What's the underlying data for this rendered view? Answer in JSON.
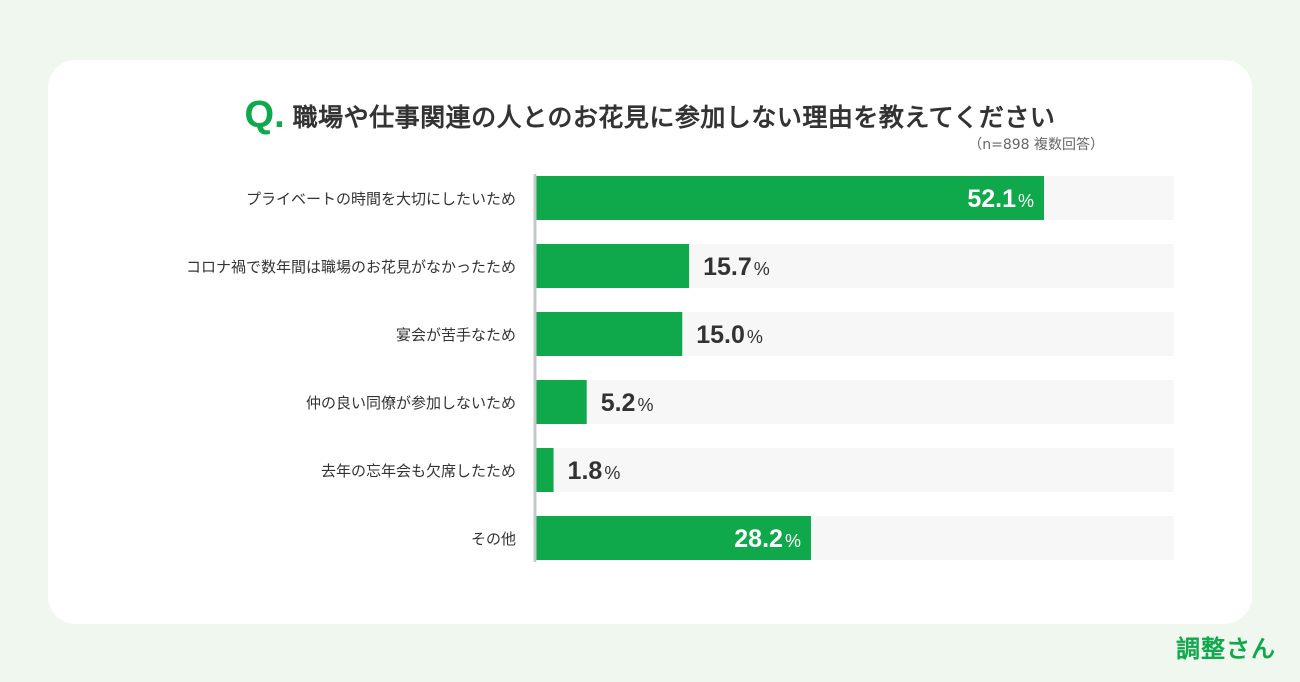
{
  "title": {
    "q_mark": "Q.",
    "text": "職場や仕事関連の人とのお花見に参加しない理由を教えてください",
    "sample_note": "（n=898 複数回答）"
  },
  "brand": "調整さん",
  "colors": {
    "background": "#eff7ef",
    "card": "#ffffff",
    "bar": "#0fa84a",
    "track": "#f6f7f6",
    "axis": "#c4c8cc",
    "label_text": "#333333",
    "value_inside": "#ffffff",
    "value_outside": "#333333"
  },
  "chart_data": {
    "type": "bar",
    "orientation": "horizontal",
    "unit": "%",
    "xlim": [
      0,
      100
    ],
    "grid": false,
    "categories": [
      "プライベートの時間を大切にしたいため",
      "コロナ禍で数年間は職場のお花見がなかったため",
      "宴会が苦手なため",
      "仲の良い同僚が参加しないため",
      "去年の忘年会も欠席したため",
      "その他"
    ],
    "values": [
      52.1,
      15.7,
      15.0,
      5.2,
      1.8,
      28.2
    ],
    "value_labels": [
      "52.1",
      "15.7",
      "15.0",
      "5.2",
      "1.8",
      "28.2"
    ]
  }
}
